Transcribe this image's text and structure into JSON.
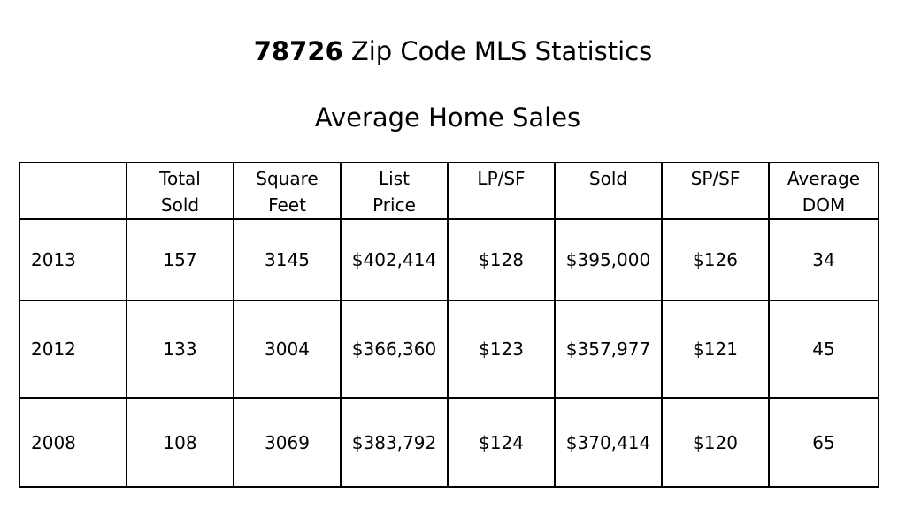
{
  "title": {
    "zip": "78726",
    "rest": " Zip Code MLS Statistics"
  },
  "subtitle": "Average Home Sales",
  "table": {
    "headers": [
      {
        "line1": "",
        "line2": ""
      },
      {
        "line1": "Total",
        "line2": "Sold"
      },
      {
        "line1": "Square",
        "line2": "Feet"
      },
      {
        "line1": "List",
        "line2": "Price"
      },
      {
        "line1": "LP/SF",
        "line2": ""
      },
      {
        "line1": "Sold",
        "line2": ""
      },
      {
        "line1": "SP/SF",
        "line2": ""
      },
      {
        "line1": "Average",
        "line2": "DOM"
      }
    ],
    "rows": [
      [
        "2013",
        "157",
        "3145",
        "$402,414",
        "$128",
        "$395,000",
        "$126",
        "34"
      ],
      [
        "2012",
        "133",
        "3004",
        "$366,360",
        "$123",
        "$357,977",
        "$121",
        "45"
      ],
      [
        "2008",
        "108",
        "3069",
        "$383,792",
        "$124",
        "$370,414",
        "$120",
        "65"
      ]
    ]
  }
}
